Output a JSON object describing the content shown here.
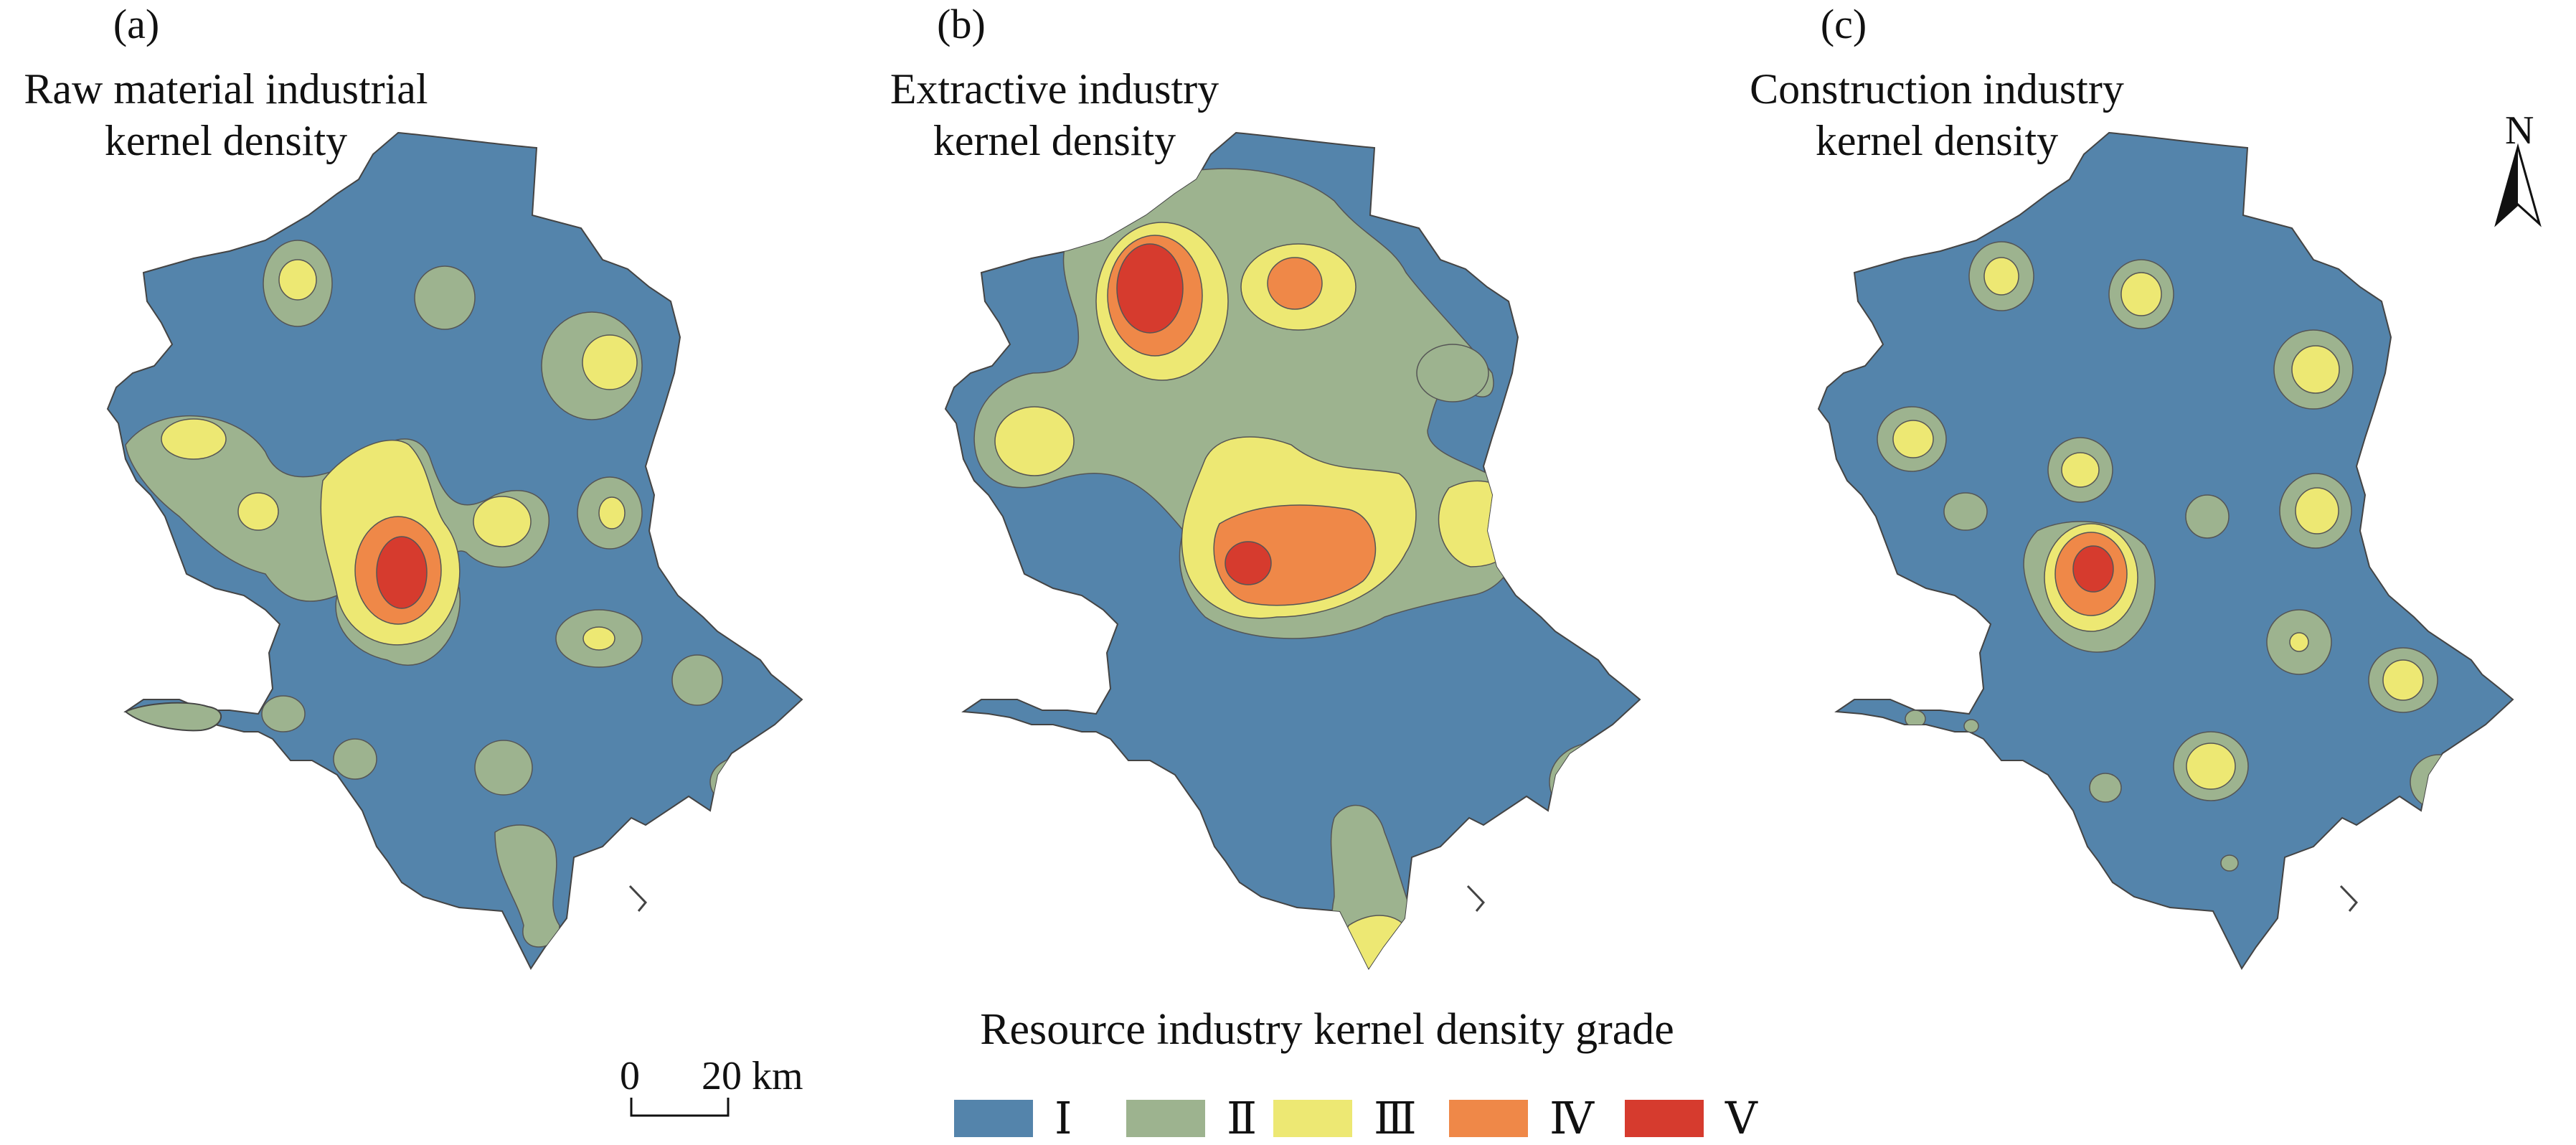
{
  "colors": {
    "grade_I": "#5484ab",
    "grade_II": "#9db38f",
    "grade_III": "#ede873",
    "grade_IV": "#ef8848",
    "grade_V": "#d63b2e",
    "outline": "#444444"
  },
  "panels": [
    {
      "letter": "(a)",
      "title_line1": "Raw material industrial",
      "title_line2": "kernel density"
    },
    {
      "letter": "(b)",
      "title_line1": "Extractive industry",
      "title_line2": "kernel density"
    },
    {
      "letter": "(c)",
      "title_line1": "Construction industry",
      "title_line2": "kernel density"
    }
  ],
  "north_arrow": {
    "label": "N",
    "icon": "north-arrow-icon"
  },
  "scale_bar": {
    "zero": "0",
    "value": "20 km"
  },
  "legend": {
    "title": "Resource industry kernel density grade",
    "grades": [
      {
        "label": "Ⅰ",
        "color": "#5484ab"
      },
      {
        "label": "Ⅱ",
        "color": "#9db38f"
      },
      {
        "label": "Ⅲ",
        "color": "#ede873"
      },
      {
        "label": "Ⅳ",
        "color": "#ef8848"
      },
      {
        "label": "Ⅴ",
        "color": "#d63b2e"
      }
    ]
  }
}
